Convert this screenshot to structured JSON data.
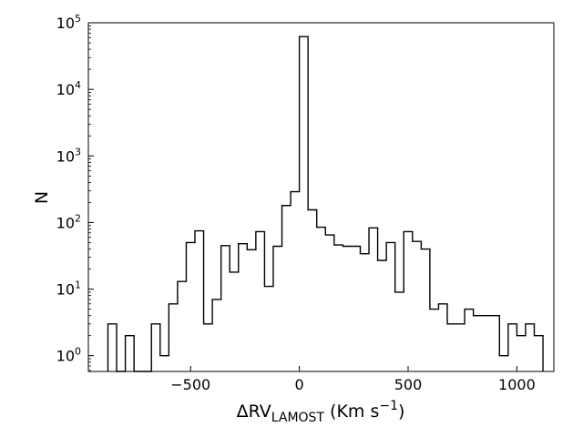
{
  "chart_data": {
    "type": "histogram",
    "plot_style": "step",
    "xlabel": "ΔRV",
    "xlabel_subscript": "LAMOST",
    "xlabel_unit_open": " (Km s",
    "xlabel_unit_sup": "−1",
    "xlabel_unit_close": ")",
    "ylabel": "N",
    "xlim": [
      -970,
      1170
    ],
    "ylim": [
      0.58,
      100000
    ],
    "yscale": "log",
    "x_ticks": [
      {
        "value": -500,
        "label": "−500"
      },
      {
        "value": 0,
        "label": "0"
      },
      {
        "value": 500,
        "label": "500"
      },
      {
        "value": 1000,
        "label": "1000"
      }
    ],
    "y_ticks": [
      {
        "value": 1,
        "base": "10",
        "exp": "0"
      },
      {
        "value": 10,
        "base": "10",
        "exp": "1"
      },
      {
        "value": 100,
        "base": "10",
        "exp": "2"
      },
      {
        "value": 1000,
        "base": "10",
        "exp": "3"
      },
      {
        "value": 10000,
        "base": "10",
        "exp": "4"
      },
      {
        "value": 100000,
        "base": "10",
        "exp": "5"
      }
    ],
    "bin_width": 40,
    "bins": [
      {
        "x0": -880,
        "count": 3
      },
      {
        "x0": -840,
        "count": 0
      },
      {
        "x0": -800,
        "count": 2
      },
      {
        "x0": -760,
        "count": 0
      },
      {
        "x0": -720,
        "count": 0
      },
      {
        "x0": -680,
        "count": 3
      },
      {
        "x0": -640,
        "count": 1
      },
      {
        "x0": -600,
        "count": 6
      },
      {
        "x0": -560,
        "count": 13
      },
      {
        "x0": -520,
        "count": 50
      },
      {
        "x0": -480,
        "count": 75
      },
      {
        "x0": -440,
        "count": 3
      },
      {
        "x0": -400,
        "count": 7
      },
      {
        "x0": -360,
        "count": 45
      },
      {
        "x0": -320,
        "count": 18
      },
      {
        "x0": -280,
        "count": 48
      },
      {
        "x0": -240,
        "count": 39
      },
      {
        "x0": -200,
        "count": 73
      },
      {
        "x0": -160,
        "count": 11
      },
      {
        "x0": -120,
        "count": 44
      },
      {
        "x0": -80,
        "count": 180
      },
      {
        "x0": -40,
        "count": 290
      },
      {
        "x0": 0,
        "count": 62000
      },
      {
        "x0": 40,
        "count": 155
      },
      {
        "x0": 80,
        "count": 85
      },
      {
        "x0": 120,
        "count": 65
      },
      {
        "x0": 160,
        "count": 46
      },
      {
        "x0": 200,
        "count": 44
      },
      {
        "x0": 240,
        "count": 44
      },
      {
        "x0": 280,
        "count": 34
      },
      {
        "x0": 320,
        "count": 83
      },
      {
        "x0": 360,
        "count": 27
      },
      {
        "x0": 400,
        "count": 50
      },
      {
        "x0": 440,
        "count": 9
      },
      {
        "x0": 480,
        "count": 73
      },
      {
        "x0": 520,
        "count": 52
      },
      {
        "x0": 560,
        "count": 40
      },
      {
        "x0": 600,
        "count": 5
      },
      {
        "x0": 640,
        "count": 6
      },
      {
        "x0": 680,
        "count": 3
      },
      {
        "x0": 720,
        "count": 3
      },
      {
        "x0": 760,
        "count": 5
      },
      {
        "x0": 800,
        "count": 4
      },
      {
        "x0": 840,
        "count": 4
      },
      {
        "x0": 880,
        "count": 4
      },
      {
        "x0": 920,
        "count": 1
      },
      {
        "x0": 960,
        "count": 3
      },
      {
        "x0": 1000,
        "count": 2
      },
      {
        "x0": 1040,
        "count": 3
      },
      {
        "x0": 1080,
        "count": 2
      }
    ],
    "line_color": "#000000",
    "grid": false
  }
}
